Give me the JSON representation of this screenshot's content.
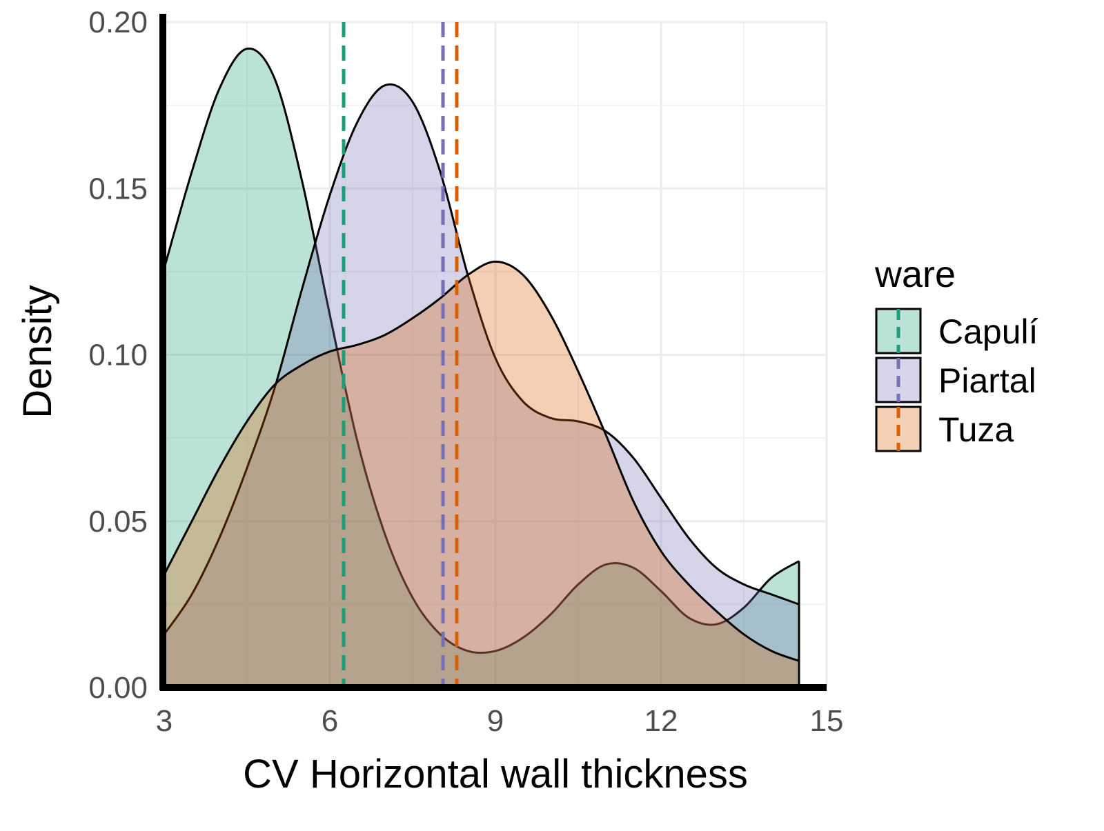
{
  "chart_data": {
    "type": "area",
    "xlabel": "CV Horizontal wall thickness",
    "ylabel": "Density",
    "xlim": [
      3,
      15
    ],
    "ylim": [
      0,
      0.2
    ],
    "x_ticks": [
      3,
      6,
      9,
      12,
      15
    ],
    "y_ticks": [
      0.0,
      0.05,
      0.1,
      0.15,
      0.2
    ],
    "x_tick_labels": [
      "3",
      "6",
      "9",
      "12",
      "15"
    ],
    "y_tick_labels": [
      "0.00",
      "0.05",
      "0.10",
      "0.15",
      "0.20"
    ],
    "grid": true,
    "legend": {
      "title": "ware",
      "position": "right"
    },
    "series": [
      {
        "name": "Capulí",
        "fill": "#1b9e77",
        "mean": 6.25,
        "points": [
          [
            3.0,
            0.126
          ],
          [
            3.5,
            0.155
          ],
          [
            4.0,
            0.18
          ],
          [
            4.5,
            0.192
          ],
          [
            5.0,
            0.183
          ],
          [
            5.5,
            0.152
          ],
          [
            6.0,
            0.112
          ],
          [
            6.5,
            0.074
          ],
          [
            7.0,
            0.046
          ],
          [
            7.5,
            0.027
          ],
          [
            8.0,
            0.016
          ],
          [
            8.5,
            0.011
          ],
          [
            9.0,
            0.011
          ],
          [
            9.5,
            0.015
          ],
          [
            10.0,
            0.022
          ],
          [
            10.5,
            0.031
          ],
          [
            11.0,
            0.037
          ],
          [
            11.5,
            0.036
          ],
          [
            12.0,
            0.029
          ],
          [
            12.5,
            0.021
          ],
          [
            13.0,
            0.019
          ],
          [
            13.5,
            0.024
          ],
          [
            14.0,
            0.033
          ],
          [
            14.5,
            0.038
          ]
        ]
      },
      {
        "name": "Piartal",
        "fill": "#7570b3",
        "mean": 8.05,
        "points": [
          [
            3.0,
            0.016
          ],
          [
            3.5,
            0.028
          ],
          [
            4.0,
            0.045
          ],
          [
            4.5,
            0.066
          ],
          [
            5.0,
            0.09
          ],
          [
            5.5,
            0.12
          ],
          [
            6.0,
            0.148
          ],
          [
            6.5,
            0.17
          ],
          [
            7.0,
            0.181
          ],
          [
            7.5,
            0.176
          ],
          [
            8.0,
            0.155
          ],
          [
            8.5,
            0.124
          ],
          [
            9.0,
            0.099
          ],
          [
            9.5,
            0.086
          ],
          [
            10.0,
            0.081
          ],
          [
            10.5,
            0.08
          ],
          [
            11.0,
            0.077
          ],
          [
            11.5,
            0.069
          ],
          [
            12.0,
            0.057
          ],
          [
            12.5,
            0.045
          ],
          [
            13.0,
            0.036
          ],
          [
            13.5,
            0.031
          ],
          [
            14.0,
            0.028
          ],
          [
            14.5,
            0.025
          ]
        ]
      },
      {
        "name": "Tuza",
        "fill": "#d95f02",
        "mean": 8.3,
        "points": [
          [
            3.0,
            0.034
          ],
          [
            3.5,
            0.05
          ],
          [
            4.0,
            0.066
          ],
          [
            4.5,
            0.08
          ],
          [
            5.0,
            0.091
          ],
          [
            5.5,
            0.097
          ],
          [
            6.0,
            0.101
          ],
          [
            6.5,
            0.103
          ],
          [
            7.0,
            0.106
          ],
          [
            7.5,
            0.111
          ],
          [
            8.0,
            0.117
          ],
          [
            8.5,
            0.124
          ],
          [
            9.0,
            0.128
          ],
          [
            9.5,
            0.124
          ],
          [
            10.0,
            0.112
          ],
          [
            10.5,
            0.095
          ],
          [
            11.0,
            0.076
          ],
          [
            11.5,
            0.056
          ],
          [
            12.0,
            0.041
          ],
          [
            12.5,
            0.031
          ],
          [
            13.0,
            0.023
          ],
          [
            13.5,
            0.016
          ],
          [
            14.0,
            0.011
          ],
          [
            14.5,
            0.008
          ]
        ]
      }
    ]
  }
}
